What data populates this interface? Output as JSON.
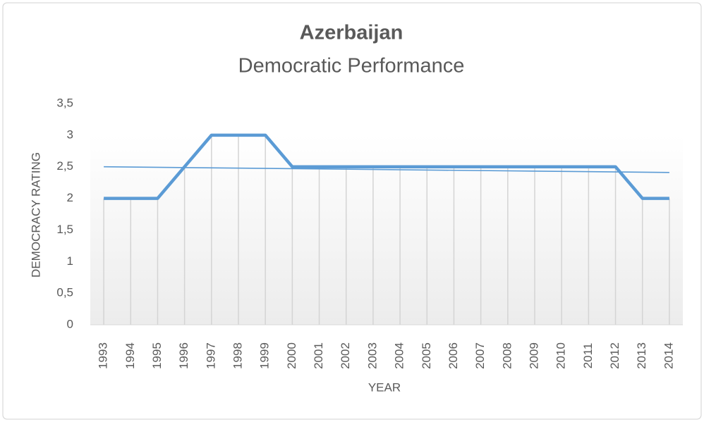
{
  "chart_data": {
    "type": "line",
    "title": "Azerbaijan",
    "subtitle": "Democratic Performance",
    "x_label": "YEAR",
    "y_label": "DEMOCRACY  RATING",
    "categories": [
      "1993",
      "1994",
      "1995",
      "1996",
      "1997",
      "1998",
      "1999",
      "2000",
      "2001",
      "2002",
      "2003",
      "2004",
      "2005",
      "2006",
      "2007",
      "2008",
      "2009",
      "2010",
      "2011",
      "2012",
      "2013",
      "2014"
    ],
    "series": [
      {
        "color": "#5b9bd5",
        "values": [
          2,
          2,
          2,
          2.5,
          3,
          3,
          3,
          2.5,
          2.5,
          2.5,
          2.5,
          2.5,
          2.5,
          2.5,
          2.5,
          2.5,
          2.5,
          2.5,
          2.5,
          2.5,
          2,
          2
        ]
      }
    ],
    "trendline": [
      2.5,
      2.41
    ],
    "ylim": [
      0,
      3.5
    ],
    "yticks": [
      0,
      {
        "value": 0.5,
        "label": "0,5"
      },
      1,
      {
        "value": 1.5,
        "label": "1,5"
      },
      2,
      {
        "value": 2.5,
        "label": "2,5"
      },
      3,
      {
        "value": 3.5,
        "label": "3,5"
      }
    ],
    "drop_lines": true
  }
}
